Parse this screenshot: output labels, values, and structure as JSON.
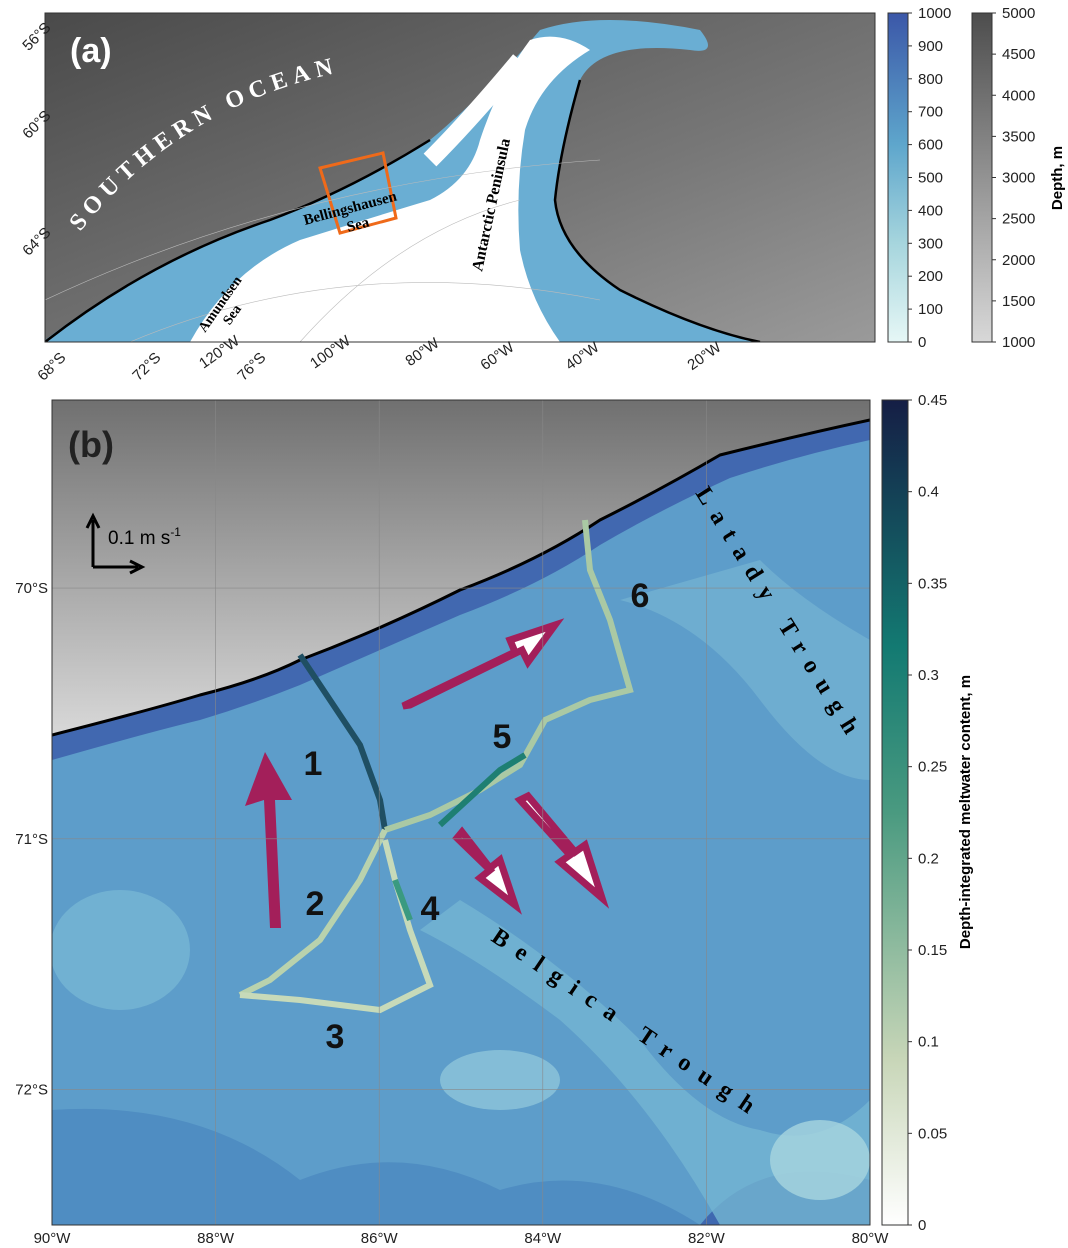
{
  "panel_a": {
    "label": "(a)",
    "ocean": "SOUTHERN OCEAN",
    "sea_1": "Bellingshausen",
    "sea_2": "Sea",
    "peninsula": "Antarctic Peninsula",
    "amundsen_1": "Amundsen",
    "amundsen_2": "Sea",
    "lat_labels": [
      "56°S",
      "60°S",
      "64°S",
      "68°S",
      "72°S",
      "76°S"
    ],
    "lon_labels": [
      "120°W",
      "100°W",
      "80°W",
      "60°W",
      "40°W",
      "20°W"
    ]
  },
  "bathy_colorbar": {
    "clim": [
      0,
      1000
    ],
    "ticks": [
      0,
      100,
      200,
      300,
      400,
      500,
      600,
      700,
      800,
      900,
      1000
    ]
  },
  "depth_colorbar": {
    "label": "Depth, m",
    "clim": [
      1000,
      5000
    ],
    "ticks": [
      1000,
      1500,
      2000,
      2500,
      3000,
      3500,
      4000,
      4500,
      5000
    ]
  },
  "panel_b": {
    "label": "(b)",
    "xlim": [
      -90,
      -80
    ],
    "xticks": [
      {
        "value": -90,
        "label": "90°W"
      },
      {
        "value": -88,
        "label": "88°W"
      },
      {
        "value": -86,
        "label": "86°W"
      },
      {
        "value": -84,
        "label": "84°W"
      },
      {
        "value": -82,
        "label": "82°W"
      },
      {
        "value": -80,
        "label": "80°W"
      }
    ],
    "ylim": [
      -72.54,
      -69.25
    ],
    "yticks": [
      {
        "value": -70,
        "label": "70°S"
      },
      {
        "value": -71,
        "label": "71°S"
      },
      {
        "value": -72,
        "label": "72°S"
      }
    ],
    "grid": true,
    "scale_label": "0.1 m s",
    "scale_unit_sup": "-1",
    "sections": [
      "1",
      "2",
      "3",
      "4",
      "5",
      "6"
    ],
    "latady": "Latady Trough",
    "belgica": "Belgica Trough"
  },
  "meltwater_colorbar": {
    "label": "Depth-integrated meltwater content, m",
    "clim": [
      0,
      0.45
    ],
    "ticks": [
      0,
      0.05,
      0.1,
      0.15,
      0.2,
      0.25,
      0.3,
      0.35,
      0.4,
      0.45
    ]
  }
}
